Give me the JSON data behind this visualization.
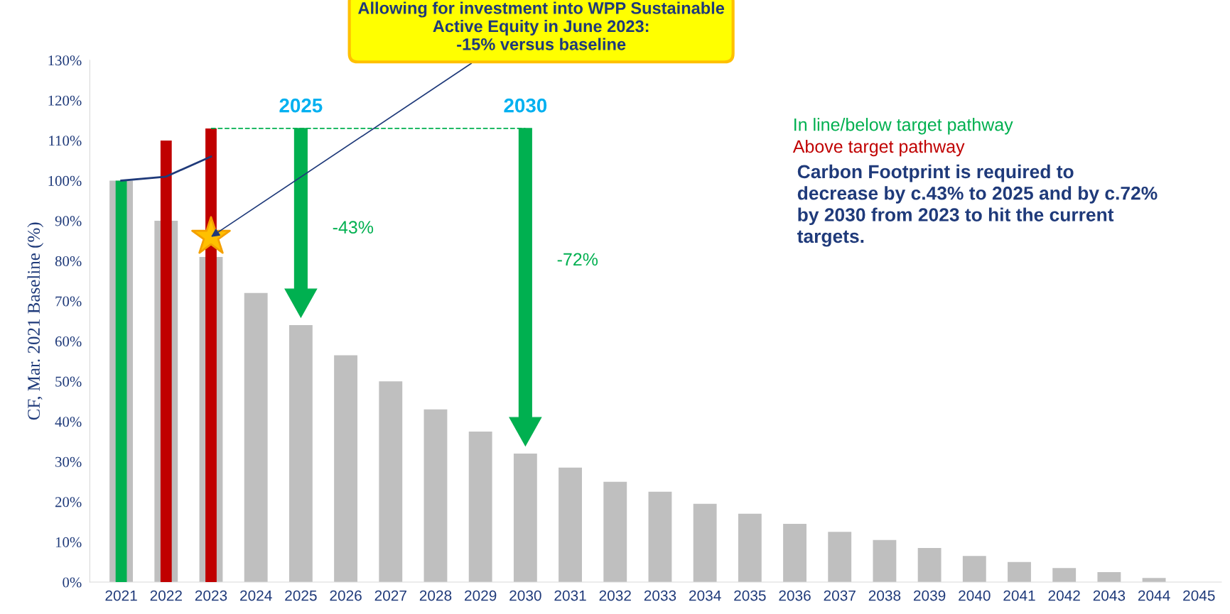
{
  "chart_data": {
    "type": "bar",
    "ylabel": "CF, Mar. 2021 Baseline (%)",
    "categories": [
      "2021",
      "2022",
      "2023",
      "2024",
      "2025",
      "2026",
      "2027",
      "2028",
      "2029",
      "2030",
      "2031",
      "2032",
      "2033",
      "2034",
      "2035",
      "2036",
      "2037",
      "2038",
      "2039",
      "2040",
      "2041",
      "2042",
      "2043",
      "2044",
      "2045"
    ],
    "series": [
      {
        "color": "#bfbfbf",
        "values": [
          100,
          90,
          81,
          72,
          64,
          56.5,
          50,
          43,
          37.5,
          32,
          28.5,
          25,
          22.5,
          19.5,
          17,
          14.5,
          12.5,
          10.5,
          8.5,
          6.5,
          5,
          3.5,
          2.5,
          1,
          0
        ]
      },
      {
        "name": "In line/below target pathway",
        "color": "#00b050",
        "values": [
          100,
          null,
          null,
          null,
          null,
          null,
          null,
          null,
          null,
          null,
          null,
          null,
          null,
          null,
          null,
          null,
          null,
          null,
          null,
          null,
          null,
          null,
          null,
          null,
          null
        ]
      },
      {
        "name": "Above target pathway",
        "color": "#c00000",
        "values": [
          null,
          110,
          113,
          null,
          null,
          null,
          null,
          null,
          null,
          null,
          null,
          null,
          null,
          null,
          null,
          null,
          null,
          null,
          null,
          null,
          null,
          null,
          null,
          null,
          null
        ]
      },
      {
        "type": "line",
        "color": "#1f3a7a",
        "values": [
          100,
          101,
          106,
          null,
          null,
          null,
          null,
          null,
          null,
          null,
          null,
          null,
          null,
          null,
          null,
          null,
          null,
          null,
          null,
          null,
          null,
          null,
          null,
          null,
          null
        ]
      },
      {
        "type": "line",
        "line_style": "dashed",
        "color": "#00b050",
        "values": [
          null,
          null,
          113,
          113,
          113,
          113,
          113,
          113,
          113,
          113,
          null,
          null,
          null,
          null,
          null,
          null,
          null,
          null,
          null,
          null,
          null,
          null,
          null,
          null,
          null
        ]
      },
      {
        "type": "scatter",
        "marker": "star",
        "color": "#ffc000",
        "values": [
          null,
          null,
          86,
          null,
          null,
          null,
          null,
          null,
          null,
          null,
          null,
          null,
          null,
          null,
          null,
          null,
          null,
          null,
          null,
          null,
          null,
          null,
          null,
          null,
          null
        ]
      }
    ],
    "ylim": [
      0,
      130
    ],
    "yticks": [
      {
        "value": 0,
        "label": "0%"
      },
      {
        "value": 10,
        "label": "10%"
      },
      {
        "value": 20,
        "label": "20%"
      },
      {
        "value": 30,
        "label": "30%"
      },
      {
        "value": 40,
        "label": "40%"
      },
      {
        "value": 50,
        "label": "50%"
      },
      {
        "value": 60,
        "label": "60%"
      },
      {
        "value": 70,
        "label": "70%"
      },
      {
        "value": 80,
        "label": "80%"
      },
      {
        "value": 90,
        "label": "90%"
      },
      {
        "value": 100,
        "label": "100%"
      },
      {
        "value": 110,
        "label": "110%"
      },
      {
        "value": 120,
        "label": "120%"
      },
      {
        "value": 130,
        "label": "130%"
      }
    ],
    "annotations": [
      {
        "text": "Allowing for investment into WPP Sustainable\nActive Equity in June 2023:\n-15% versus baseline",
        "x": "2023",
        "y": 86
      },
      "2025",
      "2030",
      "-43%",
      "-72%",
      "Carbon Footprint is required to\ndecrease by c.43% to 2025 and by c.72%\nby 2030 from 2023 to hit the current\ntargets."
    ],
    "grid": false,
    "legend": "top right"
  }
}
